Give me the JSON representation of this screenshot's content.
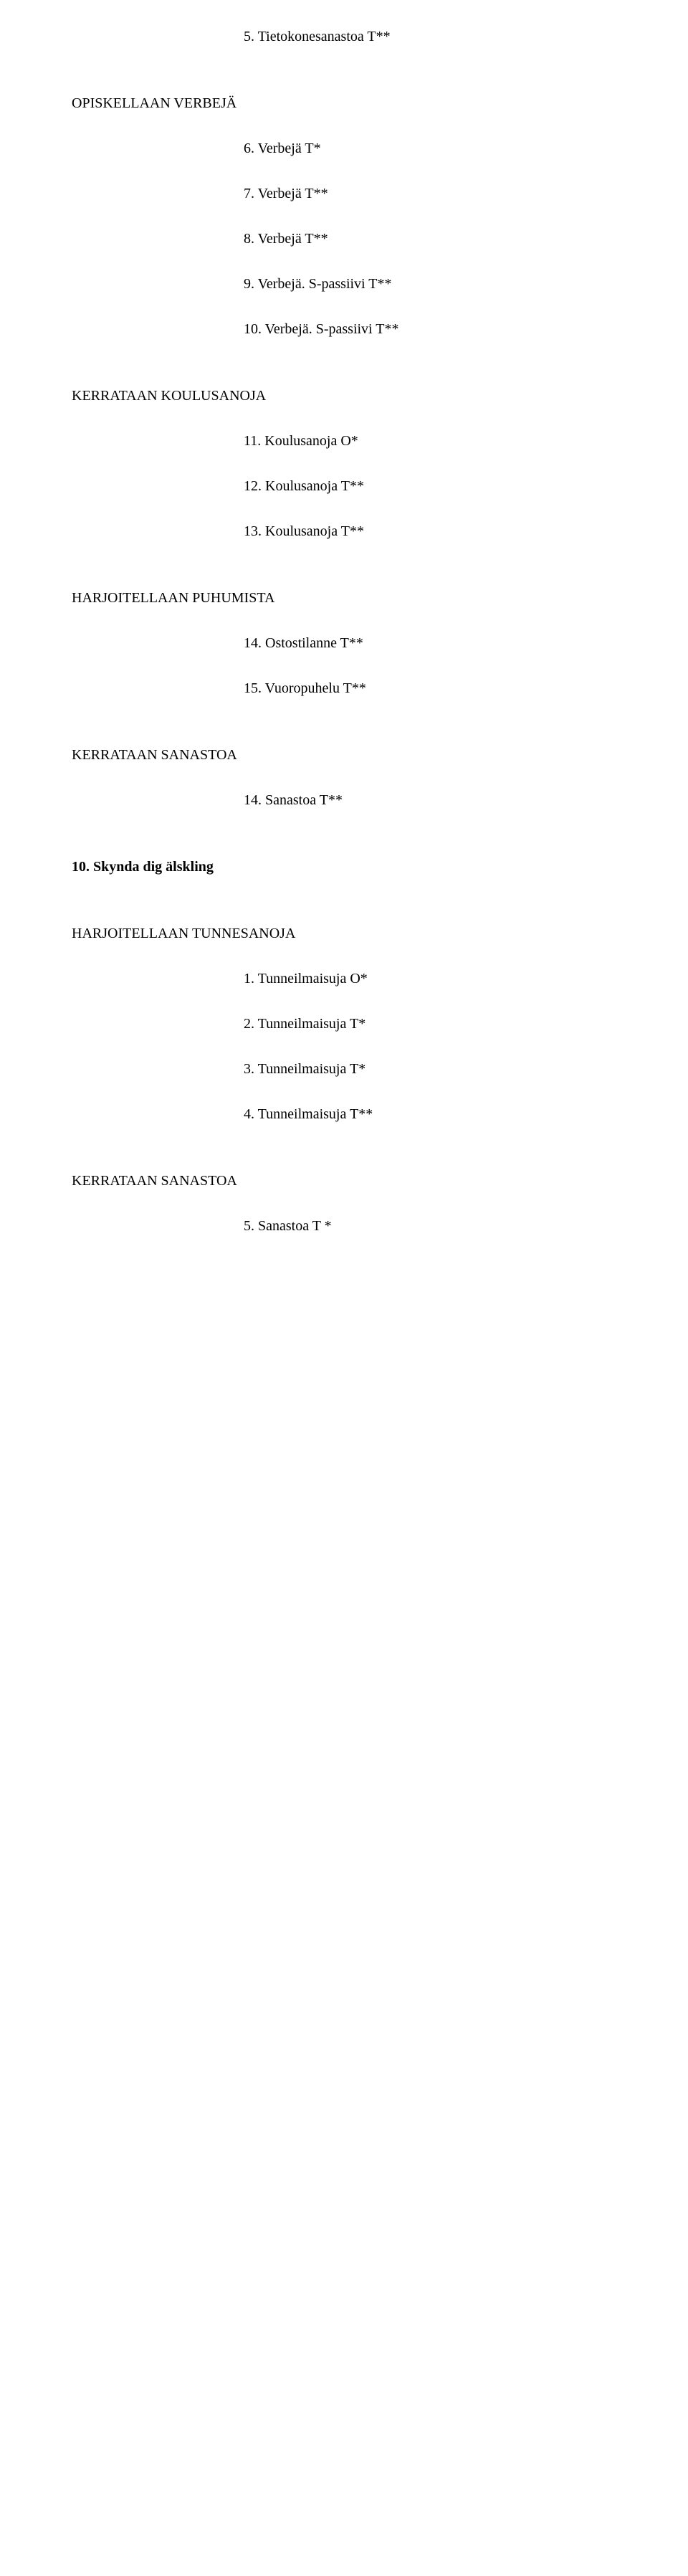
{
  "top": {
    "item5": "5. Tietokonesanastoa T**"
  },
  "sec1": {
    "header": "OPISKELLAAN VERBEJÄ",
    "items": {
      "i6": "6. Verbejä T*",
      "i7": "7. Verbejä T**",
      "i8": "8. Verbejä T**",
      "i9": "9. Verbejä. S-passiivi T**",
      "i10": "10. Verbejä. S-passiivi T**"
    }
  },
  "sec2": {
    "header": "KERRATAAN KOULUSANOJA",
    "items": {
      "i11": "11. Koulusanoja O*",
      "i12": "12. Koulusanoja T**",
      "i13": "13. Koulusanoja T**"
    }
  },
  "sec3": {
    "header": "HARJOITELLAAN PUHUMISTA",
    "items": {
      "i14": "14. Ostostilanne T**",
      "i15": "15. Vuoropuhelu T**"
    }
  },
  "sec4": {
    "header": "KERRATAAN SANASTOA",
    "items": {
      "i14b": "14. Sanastoa T**"
    }
  },
  "chapter10": {
    "header": "10. Skynda dig älskling"
  },
  "sec5": {
    "header": "HARJOITELLAAN TUNNESANOJA",
    "items": {
      "i1": "1. Tunneilmaisuja O*",
      "i2": "2. Tunneilmaisuja T*",
      "i3": "3. Tunneilmaisuja T*",
      "i4": "4. Tunneilmaisuja T**"
    }
  },
  "sec6": {
    "header": "KERRATAAN SANASTOA",
    "items": {
      "i5": "5. Sanastoa T *"
    }
  }
}
